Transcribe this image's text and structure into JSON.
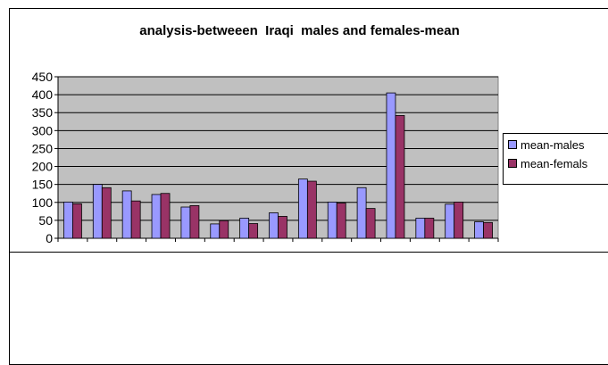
{
  "chart_data": {
    "type": "bar",
    "title": "analysis-betweeen  Iraqi  males and females-mean",
    "xlabel": "",
    "ylabel": "",
    "ylim": [
      0,
      450
    ],
    "y_ticks": [
      "0",
      "50",
      "100",
      "150",
      "200",
      "250",
      "300",
      "350",
      "400",
      "450"
    ],
    "categories": [
      "",
      "",
      "",
      "",
      "",
      "",
      "",
      "",
      "",
      "",
      "",
      "",
      "",
      "",
      ""
    ],
    "series": [
      {
        "name": "mean-males",
        "color": "#9999ff",
        "values": [
          101,
          150,
          132,
          122,
          87,
          40,
          56,
          71,
          165,
          101,
          141,
          405,
          56,
          95,
          46
        ]
      },
      {
        "name": "mean-femals",
        "color": "#993366",
        "values": [
          96,
          141,
          104,
          125,
          91,
          49,
          41,
          61,
          159,
          98,
          83,
          342,
          56,
          101,
          44
        ]
      }
    ],
    "grid": true,
    "legend_position": "right",
    "plot_background": "#c0c0c0"
  }
}
